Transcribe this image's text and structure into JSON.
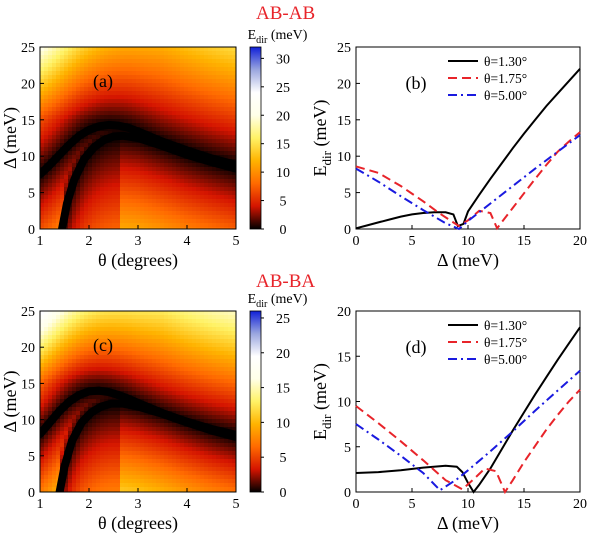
{
  "figure": {
    "section_titles": [
      "AB-AB",
      "AB-BA"
    ]
  },
  "chart_data": [
    {
      "id": "a",
      "type": "heatmap",
      "panel_label": "(a)",
      "xlabel": "θ (degrees)",
      "ylabel": "Δ (meV)",
      "xlim": [
        1,
        5
      ],
      "ylim": [
        0,
        25
      ],
      "xticks": [
        1,
        2,
        3,
        4,
        5
      ],
      "yticks": [
        0,
        5,
        10,
        15,
        20,
        25
      ],
      "colorbar": {
        "label": "Edir (meV)",
        "range": [
          0,
          32
        ],
        "ticks": [
          0,
          5,
          10,
          15,
          20,
          25,
          30
        ],
        "colors": [
          "#000000",
          "#d41400",
          "#ff6a00",
          "#ffb300",
          "#fff266",
          "#ffffe8",
          "#ffffff",
          "#9aa6df",
          "#1020d8"
        ]
      },
      "minimum_curves": [
        {
          "x": [
            1.0,
            1.2,
            1.4,
            1.6,
            1.8,
            2.0,
            2.2,
            2.4,
            2.6,
            2.8,
            3.0,
            3.5,
            4.0,
            4.5,
            5.0
          ],
          "y": [
            7.5,
            8.8,
            10.2,
            11.6,
            12.8,
            13.6,
            14.1,
            14.3,
            14.2,
            13.9,
            13.4,
            12.0,
            10.8,
            9.7,
            8.8
          ]
        },
        {
          "x": [
            1.45,
            1.55,
            1.7,
            1.9,
            2.1,
            2.3,
            2.5,
            2.7,
            3.0,
            3.5,
            4.0,
            4.5,
            5.0
          ],
          "y": [
            0.0,
            3.5,
            6.8,
            9.6,
            11.2,
            12.2,
            12.7,
            12.8,
            12.5,
            11.4,
            10.2,
            9.2,
            8.3
          ]
        }
      ]
    },
    {
      "id": "b",
      "type": "line",
      "panel_label": "(b)",
      "xlabel": "Δ (meV)",
      "ylabel": "Edir (meV)",
      "xlim": [
        0,
        20
      ],
      "ylim": [
        0,
        25
      ],
      "xticks": [
        0,
        5,
        10,
        15,
        20
      ],
      "yticks": [
        0,
        5,
        10,
        15,
        20,
        25
      ],
      "legend_position": "top-right",
      "series": [
        {
          "name": "θ=1.30°",
          "color": "#000000",
          "dash": "solid",
          "x": [
            0,
            1,
            2,
            3,
            4,
            5,
            6,
            7,
            8,
            8.7,
            9.1,
            9.6,
            10,
            11,
            12,
            13,
            14,
            15,
            16,
            17,
            18,
            19,
            20
          ],
          "y": [
            0.1,
            0.5,
            0.9,
            1.3,
            1.7,
            2.0,
            2.2,
            2.3,
            2.3,
            2.0,
            0.4,
            0.7,
            2.4,
            4.7,
            6.9,
            9.0,
            11.1,
            13.1,
            15.0,
            16.9,
            18.6,
            20.3,
            22.0
          ]
        },
        {
          "name": "θ=1.75°",
          "color": "#e8242a",
          "dash": "dash",
          "x": [
            0,
            2,
            4,
            6,
            7.5,
            8.5,
            9.2,
            10,
            11,
            12,
            12.6,
            13,
            14,
            15,
            16,
            17,
            18,
            19,
            20
          ],
          "y": [
            8.6,
            7.7,
            5.9,
            3.8,
            2.1,
            1.1,
            0.4,
            1.2,
            2.5,
            2.2,
            0.1,
            0.9,
            2.9,
            4.9,
            6.9,
            8.8,
            10.6,
            12.0,
            13.3
          ]
        },
        {
          "name": "θ=5.00°",
          "color": "#1a1adf",
          "dash": "dashdot",
          "x": [
            0,
            2,
            4,
            6,
            8,
            9.2,
            10,
            12,
            14,
            16,
            18,
            20
          ],
          "y": [
            8.3,
            6.5,
            4.5,
            2.6,
            0.8,
            0.0,
            1.1,
            3.5,
            5.9,
            8.3,
            10.6,
            12.9
          ]
        }
      ]
    },
    {
      "id": "c",
      "type": "heatmap",
      "panel_label": "(c)",
      "xlabel": "θ (degrees)",
      "ylabel": "Δ (meV)",
      "xlim": [
        1,
        5
      ],
      "ylim": [
        0,
        25
      ],
      "xticks": [
        1,
        2,
        3,
        4,
        5
      ],
      "yticks": [
        0,
        5,
        10,
        15,
        20,
        25
      ],
      "colorbar": {
        "label": "Edir (meV)",
        "range": [
          0,
          26
        ],
        "ticks": [
          0,
          5,
          10,
          15,
          20,
          25
        ],
        "colors": [
          "#000000",
          "#d41400",
          "#ff6a00",
          "#ffb300",
          "#fff266",
          "#ffffe8",
          "#ffffff",
          "#9aa6df",
          "#1020d8"
        ]
      },
      "minimum_curves": [
        {
          "x": [
            1.0,
            1.2,
            1.4,
            1.6,
            1.8,
            2.0,
            2.2,
            2.4,
            2.6,
            2.8,
            3.0,
            3.5,
            4.0,
            4.5,
            5.0
          ],
          "y": [
            8.0,
            9.6,
            11.2,
            12.5,
            13.4,
            13.9,
            14.0,
            13.8,
            13.4,
            12.9,
            12.3,
            10.9,
            9.7,
            8.7,
            7.9
          ]
        },
        {
          "x": [
            1.4,
            1.5,
            1.65,
            1.85,
            2.05,
            2.25,
            2.45,
            2.7,
            3.0,
            3.5,
            4.0,
            4.5,
            5.0
          ],
          "y": [
            0.0,
            3.5,
            7.0,
            9.6,
            11.0,
            11.8,
            12.2,
            12.2,
            11.8,
            10.8,
            9.6,
            8.5,
            7.6
          ]
        }
      ]
    },
    {
      "id": "d",
      "type": "line",
      "panel_label": "(d)",
      "xlabel": "Δ (meV)",
      "ylabel": "Edir (meV)",
      "xlim": [
        0,
        20
      ],
      "ylim": [
        0,
        20
      ],
      "xticks": [
        0,
        5,
        10,
        15,
        20
      ],
      "yticks": [
        0,
        5,
        10,
        15,
        20
      ],
      "legend_position": "top-right",
      "series": [
        {
          "name": "θ=1.30°",
          "color": "#000000",
          "dash": "solid",
          "x": [
            0,
            2,
            4,
            6,
            8,
            9,
            9.5,
            10,
            10.5,
            11,
            12,
            13,
            14,
            15,
            16,
            17,
            18,
            19,
            20
          ],
          "y": [
            2.1,
            2.2,
            2.4,
            2.7,
            2.9,
            2.8,
            2.2,
            1.0,
            0.0,
            0.8,
            2.6,
            4.7,
            6.8,
            8.8,
            10.8,
            12.7,
            14.6,
            16.4,
            18.2
          ]
        },
        {
          "name": "θ=1.75°",
          "color": "#e8242a",
          "dash": "dash",
          "x": [
            0,
            2,
            4,
            6,
            8,
            9.5,
            10.5,
            11.5,
            12.5,
            13.3,
            14,
            15,
            16,
            17,
            18,
            19,
            20
          ],
          "y": [
            9.5,
            7.6,
            5.6,
            3.5,
            1.3,
            0.3,
            1.4,
            2.6,
            2.3,
            0.0,
            1.3,
            3.3,
            5.1,
            6.9,
            8.5,
            10.0,
            11.3
          ]
        },
        {
          "name": "θ=5.00°",
          "color": "#1a1adf",
          "dash": "dashdot",
          "x": [
            0,
            2,
            4,
            6,
            7.5,
            9,
            10,
            12,
            14,
            16,
            18,
            20
          ],
          "y": [
            7.5,
            5.8,
            4.0,
            2.1,
            0.2,
            1.4,
            2.4,
            4.5,
            6.7,
            9.0,
            11.2,
            13.4
          ]
        }
      ]
    }
  ]
}
